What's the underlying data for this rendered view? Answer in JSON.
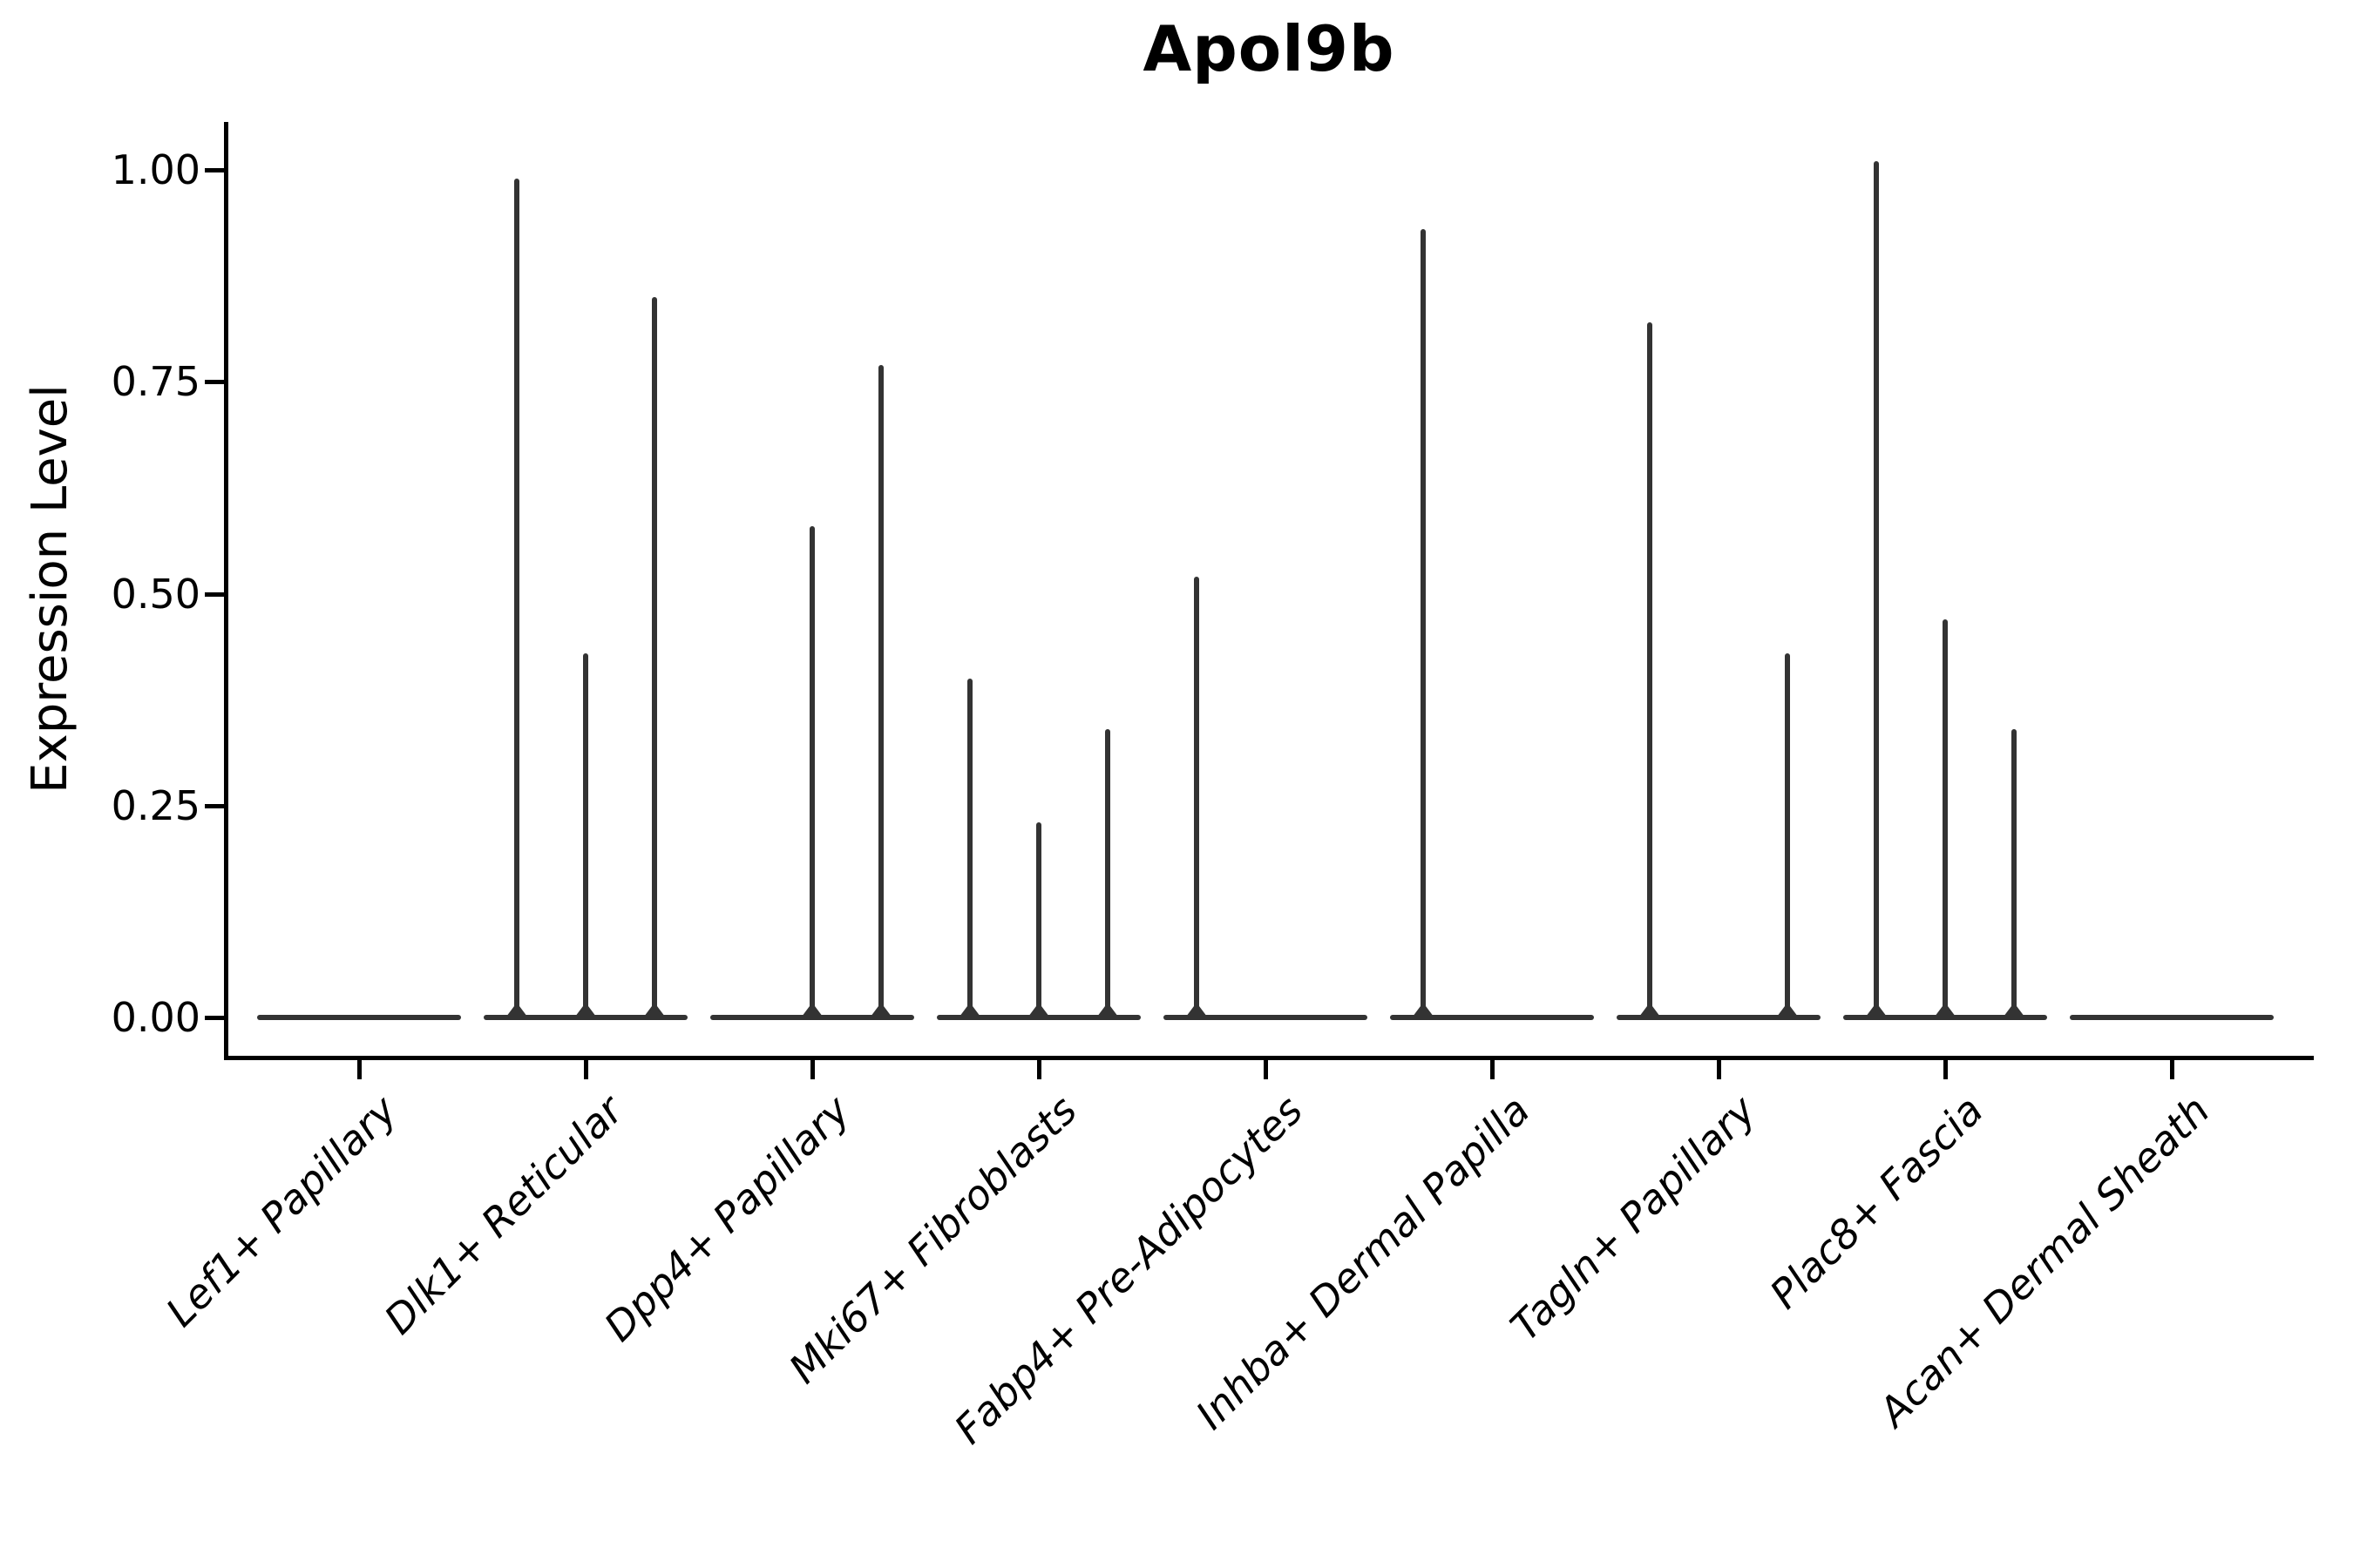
{
  "title": "Apol9b",
  "colors": {
    "background": "#ffffff",
    "axis": "#000000",
    "text": "#000000",
    "violin": "#333333"
  },
  "chart_data": {
    "type": "violin",
    "title": "Apol9b",
    "xlabel": "",
    "ylabel": "Expression Level",
    "ylim": [
      0,
      1
    ],
    "grid": false,
    "legend": "none",
    "yticks": [
      {
        "v": 0.0,
        "label": "0.00"
      },
      {
        "v": 0.25,
        "label": "0.25"
      },
      {
        "v": 0.5,
        "label": "0.50"
      },
      {
        "v": 0.75,
        "label": "0.75"
      },
      {
        "v": 1.0,
        "label": "1.00"
      }
    ],
    "categories": [
      "Lef1+ Papillary",
      "Dlk1+ Reticular",
      "Dpp4+ Papillary",
      "Mki67+ Fibroblasts",
      "Fabp4+ Pre-Adipocytes",
      "Inhba+ Dermal Papilla",
      "Tagln+ Papillary",
      "Plac8+ Fascia",
      "Acan+ Dermal Sheath"
    ],
    "series": [
      {
        "category": "Lef1+ Papillary",
        "violins": []
      },
      {
        "category": "Dlk1+ Reticular",
        "violins": [
          {
            "slot": "left",
            "peak": 0.99
          },
          {
            "slot": "center",
            "peak": 0.43
          },
          {
            "slot": "right",
            "peak": 0.85
          }
        ]
      },
      {
        "category": "Dpp4+ Papillary",
        "violins": [
          {
            "slot": "center",
            "peak": 0.58
          },
          {
            "slot": "right",
            "peak": 0.77
          }
        ]
      },
      {
        "category": "Mki67+ Fibroblasts",
        "violins": [
          {
            "slot": "left",
            "peak": 0.4
          },
          {
            "slot": "center",
            "peak": 0.23
          },
          {
            "slot": "right",
            "peak": 0.34
          }
        ]
      },
      {
        "category": "Fabp4+ Pre-Adipocytes",
        "violins": [
          {
            "slot": "left",
            "peak": 0.52
          }
        ]
      },
      {
        "category": "Inhba+ Dermal Papilla",
        "violins": [
          {
            "slot": "left",
            "peak": 0.93
          }
        ]
      },
      {
        "category": "Tagln+ Papillary",
        "violins": [
          {
            "slot": "left",
            "peak": 0.82
          },
          {
            "slot": "right",
            "peak": 0.43
          }
        ]
      },
      {
        "category": "Plac8+ Fascia",
        "violins": [
          {
            "slot": "left",
            "peak": 1.01
          },
          {
            "slot": "center",
            "peak": 0.47
          },
          {
            "slot": "right",
            "peak": 0.34
          }
        ]
      },
      {
        "category": "Acan+ Dermal Sheath",
        "violins": []
      }
    ],
    "notes": "Each expressing violin renders as a thin vertical spike rising from the zero baseline; every category has a flat zero-density baseline spanning its width."
  }
}
